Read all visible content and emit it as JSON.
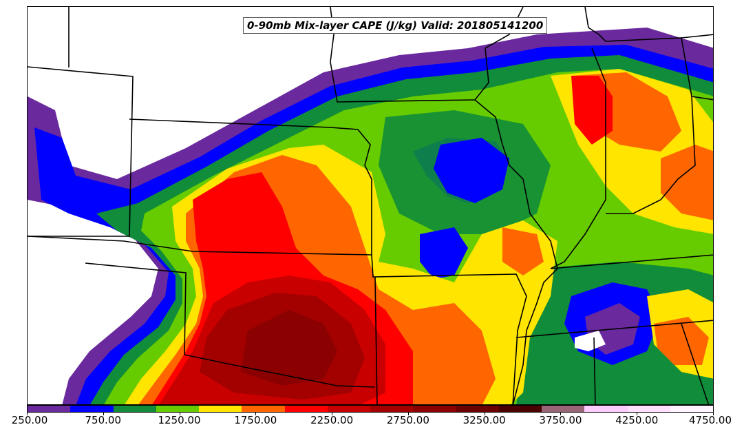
{
  "title": "0-90mb Mix-layer CAPE (J/kg) Valid: 201805141200",
  "colorbar": {
    "colors": [
      "#6a2a9e",
      "#0000ff",
      "#118c3a",
      "#66cc00",
      "#ffe500",
      "#ff6600",
      "#ff0000",
      "#c80000",
      "#a30000",
      "#8b0000",
      "#6b0000",
      "#4a0000",
      "#996677",
      "#ffccff",
      "#ffe0ff",
      "#fff4ff"
    ],
    "tick_labels": [
      "250.00",
      "750.00",
      "1250.00",
      "1750.00",
      "2250.00",
      "2750.00",
      "3250.00",
      "3750.00",
      "4250.00",
      "4750.00"
    ]
  },
  "map": {
    "background": "#ffffff",
    "border_color": "#000000"
  }
}
